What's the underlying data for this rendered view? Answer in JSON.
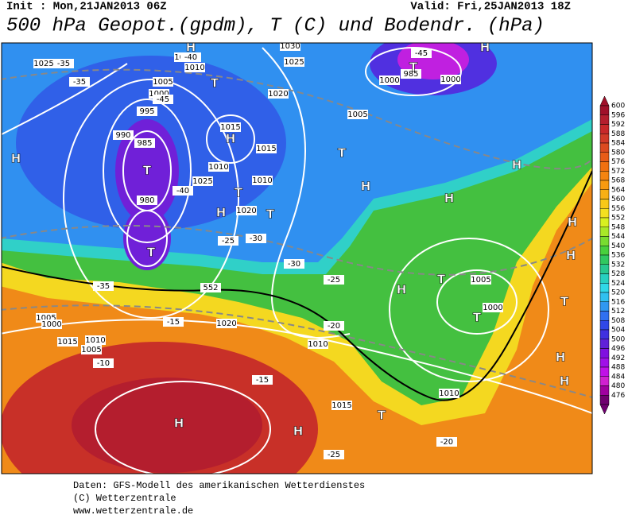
{
  "header": {
    "init": "Init : Mon,21JAN2013 06Z",
    "valid": "Valid: Fri,25JAN2013 18Z",
    "title": "500 hPa Geopot.(gpdm), T (C) und Bodendr. (hPa)"
  },
  "colorbar": {
    "levels": [
      600,
      596,
      592,
      588,
      584,
      580,
      576,
      572,
      568,
      564,
      560,
      556,
      552,
      548,
      544,
      540,
      536,
      532,
      528,
      524,
      520,
      516,
      512,
      508,
      504,
      500,
      496,
      492,
      488,
      484,
      480,
      476
    ],
    "colors": [
      "#a0102a",
      "#b41e2e",
      "#c8282a",
      "#d23a28",
      "#dc4a20",
      "#e85c18",
      "#f07010",
      "#f48410",
      "#f89a10",
      "#f8b014",
      "#f8c818",
      "#f4e020",
      "#d8f020",
      "#a8e828",
      "#78dc30",
      "#48d03c",
      "#30c860",
      "#28c890",
      "#28d0c0",
      "#30d8e8",
      "#30c0f0",
      "#3098f0",
      "#3070f0",
      "#3048e8",
      "#4030e0",
      "#6020d8",
      "#8010e0",
      "#a010e8",
      "#c010e8",
      "#d020d0",
      "#a000a0",
      "#700070"
    ]
  },
  "map": {
    "labels": [
      "1025",
      "-35",
      "1010",
      "1005",
      "1000",
      "995",
      "990",
      "985",
      "980",
      "1030",
      "1025",
      "1020",
      "-45",
      "985",
      "1000",
      "1000",
      "1005",
      "1010",
      "1015",
      "1020",
      "1025",
      "1030",
      "1015",
      "1010",
      "1005",
      "1000",
      "1015",
      "1010",
      "1005",
      "1010",
      "1015",
      "1020",
      "-40",
      "-45",
      "-35",
      "-30",
      "-25",
      "-20",
      "-15",
      "-10",
      "-25",
      "-35",
      "-40",
      "-30",
      "-20",
      "-15",
      "-25",
      "552",
      "1000",
      "1005",
      "1010"
    ],
    "systems": [
      "H",
      "H",
      "T",
      "T",
      "H",
      "T",
      "T",
      "H",
      "T",
      "H",
      "H",
      "T",
      "H",
      "H",
      "T",
      "T",
      "H",
      "H",
      "T",
      "H",
      "H",
      "H",
      "T",
      "T",
      "H",
      "H"
    ]
  },
  "footer": {
    "lines": [
      "Daten: GFS-Modell des amerikanischen Wetterdienstes",
      "(C) Wetterzentrale",
      "www.wetterzentrale.de"
    ]
  }
}
